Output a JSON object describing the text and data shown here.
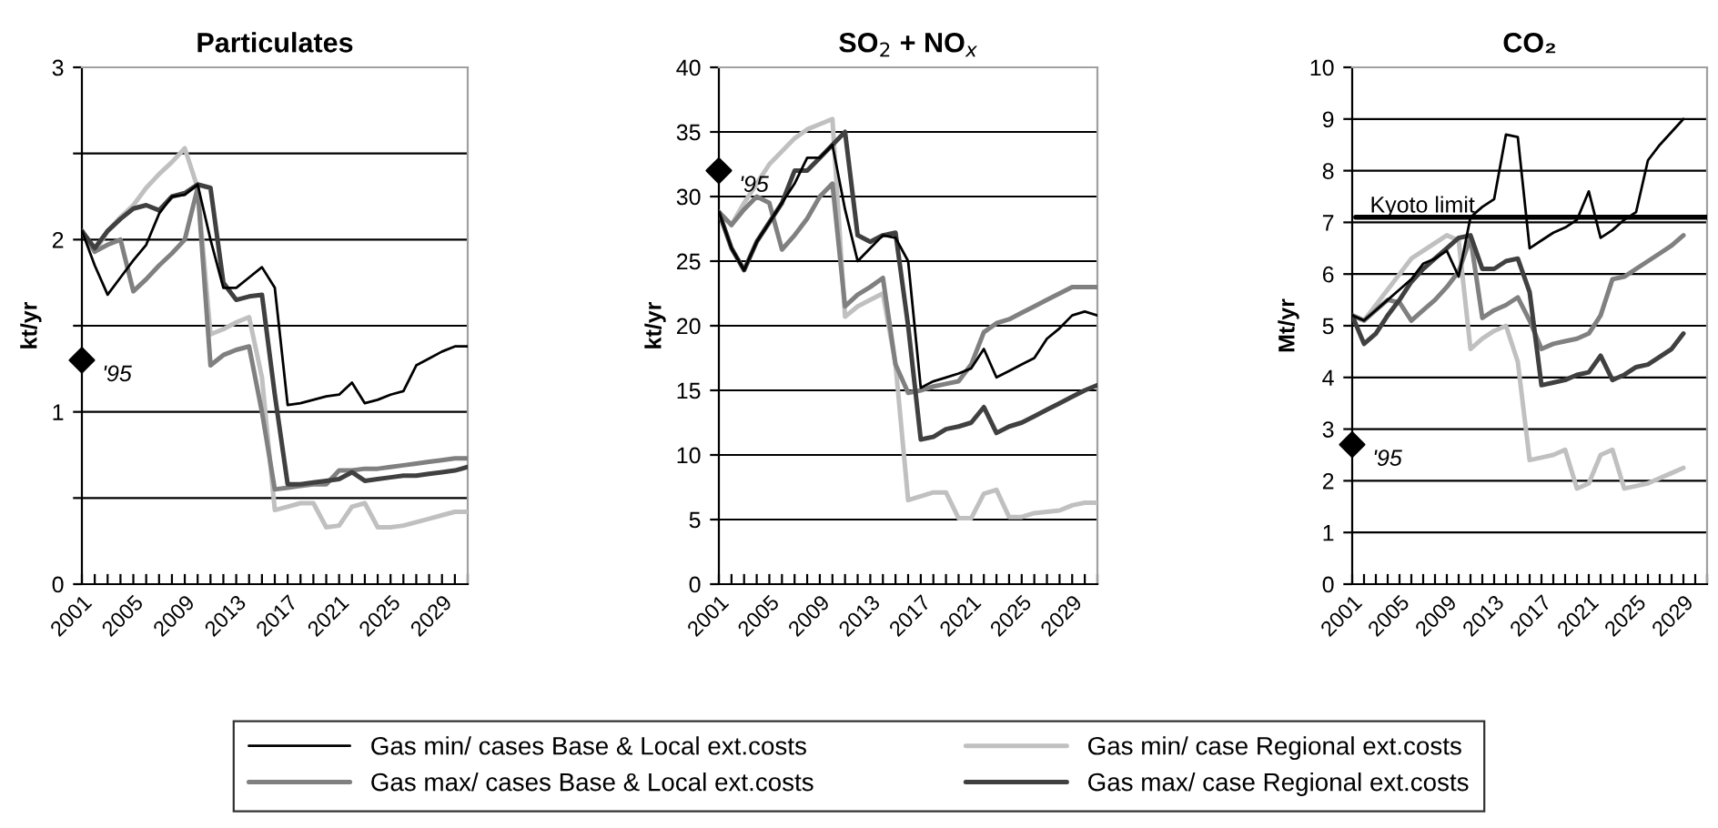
{
  "chart_data": [
    {
      "type": "line",
      "title": "Particulates",
      "ylabel": "kt/yr",
      "categories": [
        "2001",
        null,
        null,
        null,
        "2005",
        null,
        null,
        null,
        "2009",
        null,
        null,
        null,
        "2013",
        null,
        null,
        null,
        "2017",
        null,
        null,
        null,
        "2021",
        null,
        null,
        null,
        "2025",
        null,
        null,
        null,
        "2029",
        null,
        null
      ],
      "ylim": [
        0,
        3
      ],
      "yticks": [
        0,
        {
          "value": 0.5,
          "label": null
        },
        1,
        {
          "value": 1.5,
          "label": null
        },
        2,
        {
          "value": 2.5,
          "label": null
        },
        3
      ],
      "grid": "y",
      "legend": "bottom",
      "marker": "none",
      "series": [
        {
          "name": "Gas min/ cases Base & Local ext.costs",
          "color": "#000000",
          "values": [
            2.05,
            1.85,
            1.68,
            1.78,
            1.88,
            1.97,
            2.15,
            2.25,
            2.26,
            2.32,
            2.0,
            1.72,
            1.72,
            1.78,
            1.84,
            1.72,
            1.04,
            1.05,
            1.07,
            1.09,
            1.1,
            1.17,
            1.05,
            1.07,
            1.1,
            1.12,
            1.27,
            1.31,
            1.35,
            1.38,
            1.38
          ]
        },
        {
          "name": "Gas min/ case Regional ext.costs",
          "color": "#c0c0c0",
          "values": [
            2.05,
            1.93,
            2.05,
            2.13,
            2.2,
            2.3,
            2.38,
            2.45,
            2.53,
            2.3,
            1.45,
            1.48,
            1.52,
            1.55,
            1.2,
            0.43,
            0.45,
            0.47,
            0.47,
            0.33,
            0.34,
            0.45,
            0.47,
            0.33,
            0.33,
            0.34,
            0.36,
            0.38,
            0.4,
            0.42,
            0.42
          ]
        },
        {
          "name": "Gas max/ cases Base & Local ext.costs",
          "color": "#808080",
          "values": [
            2.05,
            1.93,
            1.97,
            2.0,
            1.7,
            1.77,
            1.85,
            1.92,
            2.0,
            2.3,
            1.27,
            1.33,
            1.36,
            1.38,
            1.0,
            0.55,
            0.56,
            0.57,
            0.58,
            0.58,
            0.66,
            0.66,
            0.67,
            0.67,
            0.68,
            0.69,
            0.7,
            0.71,
            0.72,
            0.73,
            0.73
          ]
        },
        {
          "name": "Gas max/ case Regional ext.costs",
          "color": "#404040",
          "values": [
            2.05,
            1.95,
            2.05,
            2.12,
            2.18,
            2.2,
            2.17,
            2.25,
            2.27,
            2.32,
            2.3,
            1.75,
            1.65,
            1.67,
            1.68,
            1.1,
            0.58,
            0.58,
            0.59,
            0.6,
            0.61,
            0.65,
            0.6,
            0.61,
            0.62,
            0.63,
            0.63,
            0.64,
            0.65,
            0.66,
            0.68
          ]
        },
        {
          "type": "scatter",
          "color": "#000000",
          "marker": "diamond",
          "values": [
            1.3,
            null,
            null,
            null,
            null,
            null,
            null,
            null,
            null,
            null,
            null,
            null,
            null,
            null,
            null,
            null,
            null,
            null,
            null,
            null,
            null,
            null,
            null,
            null,
            null,
            null,
            null,
            null,
            null,
            null,
            null
          ]
        }
      ],
      "annotations": [
        {
          "text": "'95",
          "x": "2001",
          "y": 1.3
        }
      ]
    },
    {
      "type": "line",
      "title": "SO$_{2}$ + NO$_{x}$",
      "ylabel": "kt/yr",
      "categories": [
        "2001",
        null,
        null,
        null,
        "2005",
        null,
        null,
        null,
        "2009",
        null,
        null,
        null,
        "2013",
        null,
        null,
        null,
        "2017",
        null,
        null,
        null,
        "2021",
        null,
        null,
        null,
        "2025",
        null,
        null,
        null,
        "2029",
        null,
        null
      ],
      "ylim": [
        0,
        40
      ],
      "yticks": [
        0,
        5,
        10,
        15,
        20,
        25,
        30,
        35,
        40
      ],
      "grid": "y",
      "marker": "none",
      "series": [
        {
          "color": "#000000",
          "values": [
            28.8,
            26,
            24.3,
            26.5,
            28,
            29.5,
            31,
            33,
            33,
            34,
            29,
            25,
            26,
            27,
            26.8,
            25,
            15.2,
            15.7,
            16,
            16.3,
            16.7,
            18.2,
            16,
            16.5,
            17,
            17.5,
            19,
            19.8,
            20.8,
            21.1,
            20.8
          ]
        },
        {
          "color": "#c0c0c0",
          "values": [
            28.8,
            27.8,
            29.5,
            31,
            32.5,
            33.5,
            34.5,
            35.2,
            35.6,
            36,
            20.7,
            21.5,
            22,
            22.5,
            17,
            6.5,
            6.8,
            7.1,
            7.1,
            5.1,
            5.1,
            7.0,
            7.3,
            5.2,
            5.2,
            5.5,
            5.6,
            5.7,
            6.1,
            6.3,
            6.3
          ]
        },
        {
          "color": "#808080",
          "values": [
            28.8,
            27.8,
            29,
            30,
            29.5,
            25.9,
            27,
            28.3,
            30,
            31,
            21.5,
            22.4,
            23,
            23.7,
            17,
            14.8,
            15,
            15.3,
            15.5,
            15.7,
            17,
            19.5,
            20.2,
            20.5,
            21,
            21.5,
            22,
            22.5,
            23,
            23,
            23
          ]
        },
        {
          "color": "#404040",
          "values": [
            28.8,
            26,
            24.3,
            26.5,
            28,
            29.5,
            32,
            32,
            33,
            34,
            35,
            27,
            26.5,
            27,
            27.2,
            20,
            11.2,
            11.4,
            12,
            12.2,
            12.5,
            13.7,
            11.7,
            12.2,
            12.5,
            13,
            13.5,
            14,
            14.5,
            15,
            15.4
          ]
        },
        {
          "type": "scatter",
          "color": "#000000",
          "marker": "diamond",
          "values": [
            32,
            null,
            null,
            null,
            null,
            null,
            null,
            null,
            null,
            null,
            null,
            null,
            null,
            null,
            null,
            null,
            null,
            null,
            null,
            null,
            null,
            null,
            null,
            null,
            null,
            null,
            null,
            null,
            null,
            null,
            null
          ]
        }
      ],
      "annotations": [
        {
          "text": "'95",
          "x": "2001",
          "y": 32
        }
      ]
    },
    {
      "type": "line",
      "title": "CO₂",
      "ylabel": "Mt/yr",
      "categories": [
        "2001",
        null,
        null,
        null,
        "2005",
        null,
        null,
        null,
        "2009",
        null,
        null,
        null,
        "2013",
        null,
        null,
        null,
        "2017",
        null,
        null,
        null,
        "2021",
        null,
        null,
        null,
        "2025",
        null,
        null,
        null,
        "2029",
        null,
        null
      ],
      "ylim": [
        0,
        10
      ],
      "yticks": [
        0,
        1,
        2,
        3,
        4,
        5,
        6,
        7,
        8,
        9,
        10
      ],
      "grid": "y",
      "marker": "none",
      "ref_lines": [
        {
          "axis": "y",
          "value": 7.1,
          "label": "Kyoto limit",
          "color": "#000000"
        }
      ],
      "series": [
        {
          "color": "#000000",
          "values": [
            5.2,
            5.1,
            5.3,
            5.5,
            5.7,
            5.9,
            6.2,
            6.3,
            6.45,
            5.95,
            7.1,
            7.3,
            7.45,
            8.7,
            8.65,
            6.5,
            6.65,
            6.8,
            6.9,
            7.05,
            7.6,
            6.7,
            6.85,
            7.05,
            7.2,
            8.2,
            8.5,
            8.75,
            9.0,
            null,
            null
          ]
        },
        {
          "color": "#c0c0c0",
          "values": [
            5.2,
            5.1,
            5.4,
            5.7,
            6.0,
            6.3,
            6.45,
            6.6,
            6.75,
            6.65,
            4.55,
            4.75,
            4.9,
            5.0,
            4.3,
            2.4,
            2.45,
            2.5,
            2.6,
            1.85,
            1.95,
            2.5,
            2.6,
            1.85,
            1.9,
            1.95,
            2.05,
            2.15,
            2.25,
            null,
            null
          ]
        },
        {
          "color": "#808080",
          "values": [
            5.2,
            5.1,
            5.3,
            5.5,
            5.45,
            5.1,
            5.3,
            5.5,
            5.75,
            6.05,
            6.7,
            5.15,
            5.3,
            5.4,
            5.55,
            5.1,
            4.55,
            4.65,
            4.7,
            4.75,
            4.85,
            5.2,
            5.9,
            5.95,
            6.1,
            6.25,
            6.4,
            6.55,
            6.75,
            null,
            null
          ]
        },
        {
          "color": "#404040",
          "values": [
            5.2,
            4.65,
            4.85,
            5.2,
            5.5,
            5.85,
            6.1,
            6.3,
            6.5,
            6.7,
            6.75,
            6.1,
            6.1,
            6.25,
            6.3,
            5.65,
            3.85,
            3.9,
            3.95,
            4.05,
            4.1,
            4.42,
            3.95,
            4.05,
            4.2,
            4.25,
            4.4,
            4.55,
            4.85,
            null,
            null
          ]
        },
        {
          "type": "scatter",
          "color": "#000000",
          "marker": "diamond",
          "values": [
            2.7,
            null,
            null,
            null,
            null,
            null,
            null,
            null,
            null,
            null,
            null,
            null,
            null,
            null,
            null,
            null,
            null,
            null,
            null,
            null,
            null,
            null,
            null,
            null,
            null,
            null,
            null,
            null,
            null,
            null,
            null
          ]
        }
      ],
      "annotations": [
        {
          "text": "'95",
          "x": "2001",
          "y": 2.7
        }
      ]
    }
  ]
}
